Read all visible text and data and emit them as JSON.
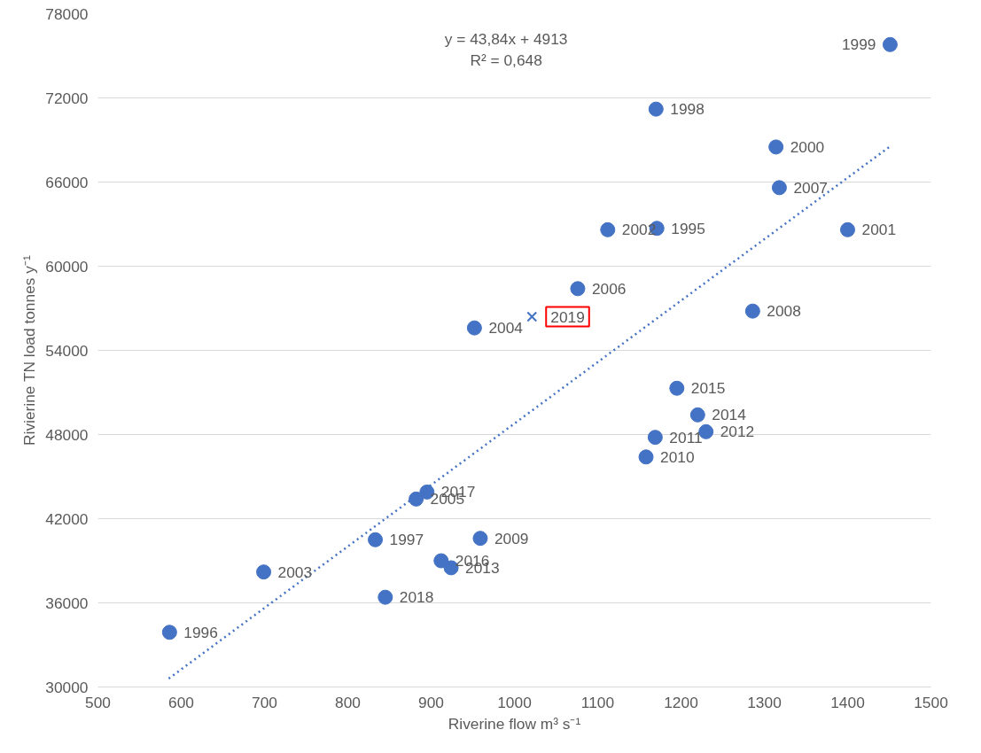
{
  "chart_data": {
    "type": "scatter",
    "xlabel": "Riverine flow m³ s⁻¹",
    "ylabel": "Rivierine TN load tonnes y⁻¹",
    "xlim": [
      500,
      1500
    ],
    "xticks": [
      500,
      600,
      700,
      800,
      900,
      1000,
      1100,
      1200,
      1300,
      1400,
      1500
    ],
    "ylim": [
      30000,
      78000
    ],
    "yticks": [
      30000,
      36000,
      42000,
      48000,
      54000,
      60000,
      66000,
      72000,
      78000
    ],
    "grid": "y",
    "annotations": [
      "y = 43,84x + 4913",
      "R² = 0,648",
      {
        "text": "1999",
        "x": 1451,
        "y": 75800
      },
      {
        "text": "1998",
        "x": 1170,
        "y": 71200
      },
      {
        "text": "2000",
        "x": 1314,
        "y": 68500
      },
      {
        "text": "2007",
        "x": 1318,
        "y": 65600
      },
      {
        "text": "2001",
        "x": 1400,
        "y": 62600
      },
      {
        "text": "2002",
        "x": 1112,
        "y": 62600
      },
      {
        "text": "1995",
        "x": 1171,
        "y": 62700
      },
      {
        "text": "2006",
        "x": 1076,
        "y": 58400
      },
      {
        "text": "2004",
        "x": 952,
        "y": 55600
      },
      {
        "text": "2008",
        "x": 1286,
        "y": 56800
      },
      {
        "text": "2015",
        "x": 1195,
        "y": 51300
      },
      {
        "text": "2014",
        "x": 1220,
        "y": 49400
      },
      {
        "text": "2012",
        "x": 1230,
        "y": 48200
      },
      {
        "text": "2011",
        "x": 1169,
        "y": 47800
      },
      {
        "text": "2010",
        "x": 1158,
        "y": 46400
      },
      {
        "text": "2017",
        "x": 895,
        "y": 43900
      },
      {
        "text": "2005",
        "x": 882,
        "y": 43400
      },
      {
        "text": "1997",
        "x": 833,
        "y": 40500
      },
      {
        "text": "2009",
        "x": 959,
        "y": 40600
      },
      {
        "text": "2016",
        "x": 912,
        "y": 39000
      },
      {
        "text": "2013",
        "x": 924,
        "y": 38500
      },
      {
        "text": "2003",
        "x": 699,
        "y": 38200
      },
      {
        "text": "2018",
        "x": 845,
        "y": 36400
      },
      {
        "text": "1996",
        "x": 586,
        "y": 33900
      },
      {
        "text": "2019",
        "x": 1021,
        "y": 56400
      }
    ],
    "series": [
      {
        "marker": "circle",
        "color": "#4472c4",
        "x": [
          1451,
          1170,
          1314,
          1318,
          1400,
          1112,
          1171,
          1076,
          952,
          1286,
          1195,
          1220,
          1230,
          1169,
          1158,
          895,
          882,
          833,
          959,
          912,
          924,
          699,
          845,
          586
        ],
        "values": [
          75800,
          71200,
          68500,
          65600,
          62600,
          62600,
          62700,
          58400,
          55600,
          56800,
          51300,
          49400,
          48200,
          47800,
          46400,
          43900,
          43400,
          40500,
          40600,
          39000,
          38500,
          38200,
          36400,
          33900
        ]
      },
      {
        "marker": "cross",
        "color": "#4472c4",
        "x": [
          1021
        ],
        "values": [
          56400
        ]
      },
      {
        "type": "line",
        "line_style": "dotted",
        "color": "#4472c4",
        "x": [
          585,
          1450
        ],
        "values": [
          30600,
          68500
        ]
      }
    ]
  }
}
